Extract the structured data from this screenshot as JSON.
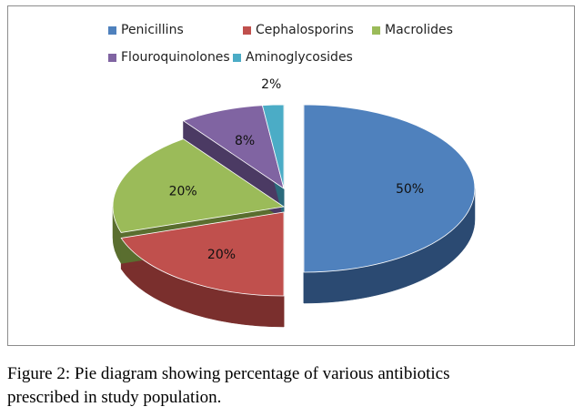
{
  "chart_data": {
    "type": "pie",
    "title": "",
    "categories": [
      "Penicillins",
      "Cephalosporins",
      "Macrolides",
      "Flouroquinolones",
      "Aminoglycosides"
    ],
    "values": [
      50,
      20,
      20,
      8,
      2
    ],
    "labels": [
      "50%",
      "20%",
      "20%",
      "8%",
      "2%"
    ],
    "colors": [
      "#4f81bd",
      "#c0504d",
      "#9bbb59",
      "#8064a2",
      "#4bacc6"
    ],
    "side_colors": [
      "#2b4a72",
      "#7a2f2d",
      "#5a6e2f",
      "#4b3a63",
      "#2a6a7c"
    ],
    "style": "3d-exploded",
    "legend": "top"
  },
  "caption": {
    "line1": "Figure 2: Pie diagram showing percentage of various antibiotics",
    "line2": "prescribed in study population."
  }
}
